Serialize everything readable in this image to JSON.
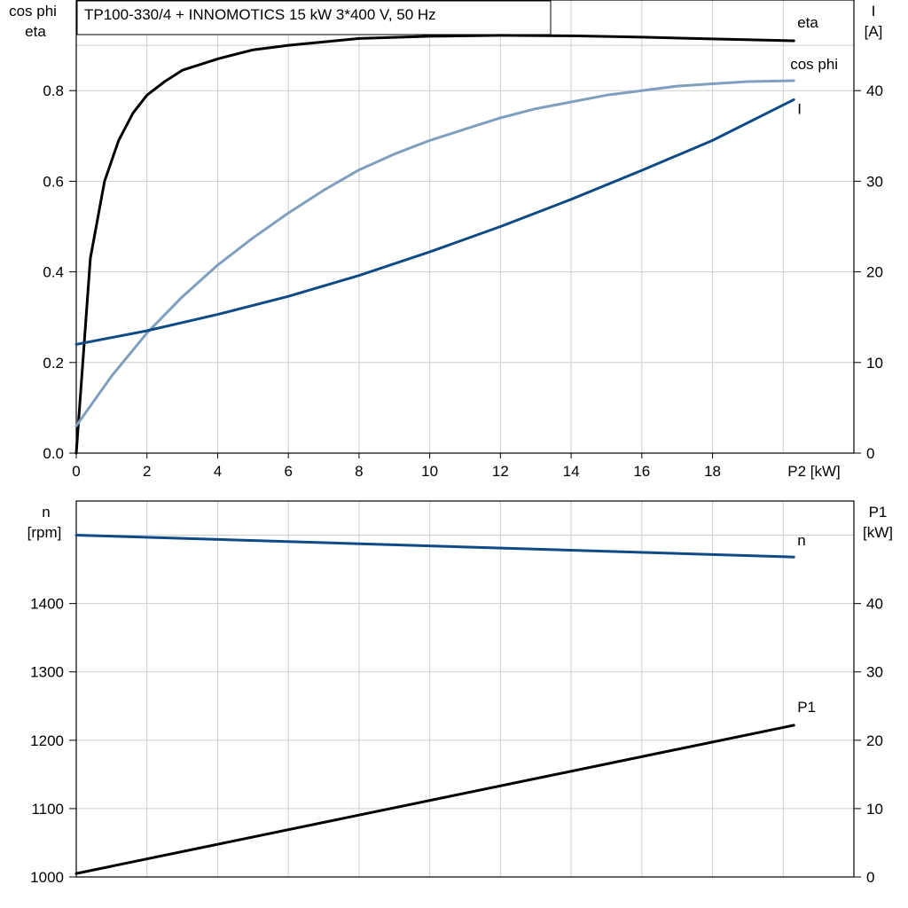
{
  "colors": {
    "black": "#000000",
    "dark_blue": "#0e4a84",
    "light_blue": "#7f9fbf",
    "grid": "#cfcfcf"
  },
  "chart_data": [
    {
      "type": "line",
      "title": "TP100-330/4 + INNOMOTICS   15 kW   3*400 V, 50 Hz",
      "xlabel": "P2 [kW]",
      "xlim": [
        0,
        22
      ],
      "x_ticks": [
        "0",
        "2",
        "4",
        "6",
        "8",
        "10",
        "12",
        "14",
        "16",
        "18"
      ],
      "ylabel_left_1": "cos phi",
      "ylabel_left_2": "eta",
      "ylim_left": [
        0,
        1.0
      ],
      "y_ticks_left": [
        "0.0",
        "0.2",
        "0.4",
        "0.6",
        "0.8"
      ],
      "ylabel_right_1": "I",
      "ylabel_right_2": "[A]",
      "ylim_right": [
        0,
        50
      ],
      "y_ticks_right": [
        "0",
        "10",
        "20",
        "30",
        "40"
      ],
      "grid": true,
      "series": [
        {
          "name": "eta",
          "axis": "left",
          "color": "#000000",
          "x": [
            0,
            0.4,
            0.8,
            1.2,
            1.6,
            2,
            2.5,
            3,
            4,
            5,
            6,
            8,
            10,
            12,
            14,
            16,
            18,
            20.3
          ],
          "y": [
            0.0,
            0.43,
            0.6,
            0.69,
            0.75,
            0.79,
            0.82,
            0.845,
            0.87,
            0.89,
            0.9,
            0.915,
            0.92,
            0.922,
            0.921,
            0.918,
            0.914,
            0.91
          ]
        },
        {
          "name": "cos phi",
          "axis": "left",
          "color": "#7f9fbf",
          "x": [
            0,
            1,
            2,
            3,
            4,
            5,
            6,
            7,
            8,
            9,
            10,
            11,
            12,
            13,
            14,
            15,
            16,
            17,
            18,
            19,
            20.3
          ],
          "y": [
            0.06,
            0.17,
            0.265,
            0.345,
            0.415,
            0.475,
            0.53,
            0.58,
            0.625,
            0.66,
            0.69,
            0.715,
            0.74,
            0.76,
            0.775,
            0.79,
            0.8,
            0.81,
            0.815,
            0.82,
            0.822
          ]
        },
        {
          "name": "I",
          "axis": "right",
          "color": "#0e4a84",
          "x": [
            0,
            2,
            4,
            6,
            8,
            10,
            12,
            14,
            16,
            18,
            20.3
          ],
          "y": [
            12,
            13.5,
            15.3,
            17.3,
            19.6,
            22.2,
            25,
            28,
            31.2,
            34.5,
            39
          ]
        }
      ]
    },
    {
      "type": "line",
      "title": "",
      "xlabel": "",
      "xlim": [
        0,
        22
      ],
      "ylabel_left_1": "n",
      "ylabel_left_2": "[rpm]",
      "ylim_left": [
        1000,
        1550
      ],
      "y_ticks_left": [
        "1000",
        "1100",
        "1200",
        "1300",
        "1400"
      ],
      "ylabel_right_1": "P1",
      "ylabel_right_2": "[kW]",
      "ylim_right": [
        0,
        55
      ],
      "y_ticks_right": [
        "0",
        "10",
        "20",
        "30",
        "40"
      ],
      "grid": true,
      "series": [
        {
          "name": "n",
          "axis": "left",
          "color": "#0e4a84",
          "x": [
            0,
            20.3
          ],
          "y": [
            1500,
            1468
          ]
        },
        {
          "name": "P1",
          "axis": "right",
          "color": "#000000",
          "x": [
            0,
            20.3
          ],
          "y": [
            0.5,
            22.2
          ]
        }
      ]
    }
  ]
}
